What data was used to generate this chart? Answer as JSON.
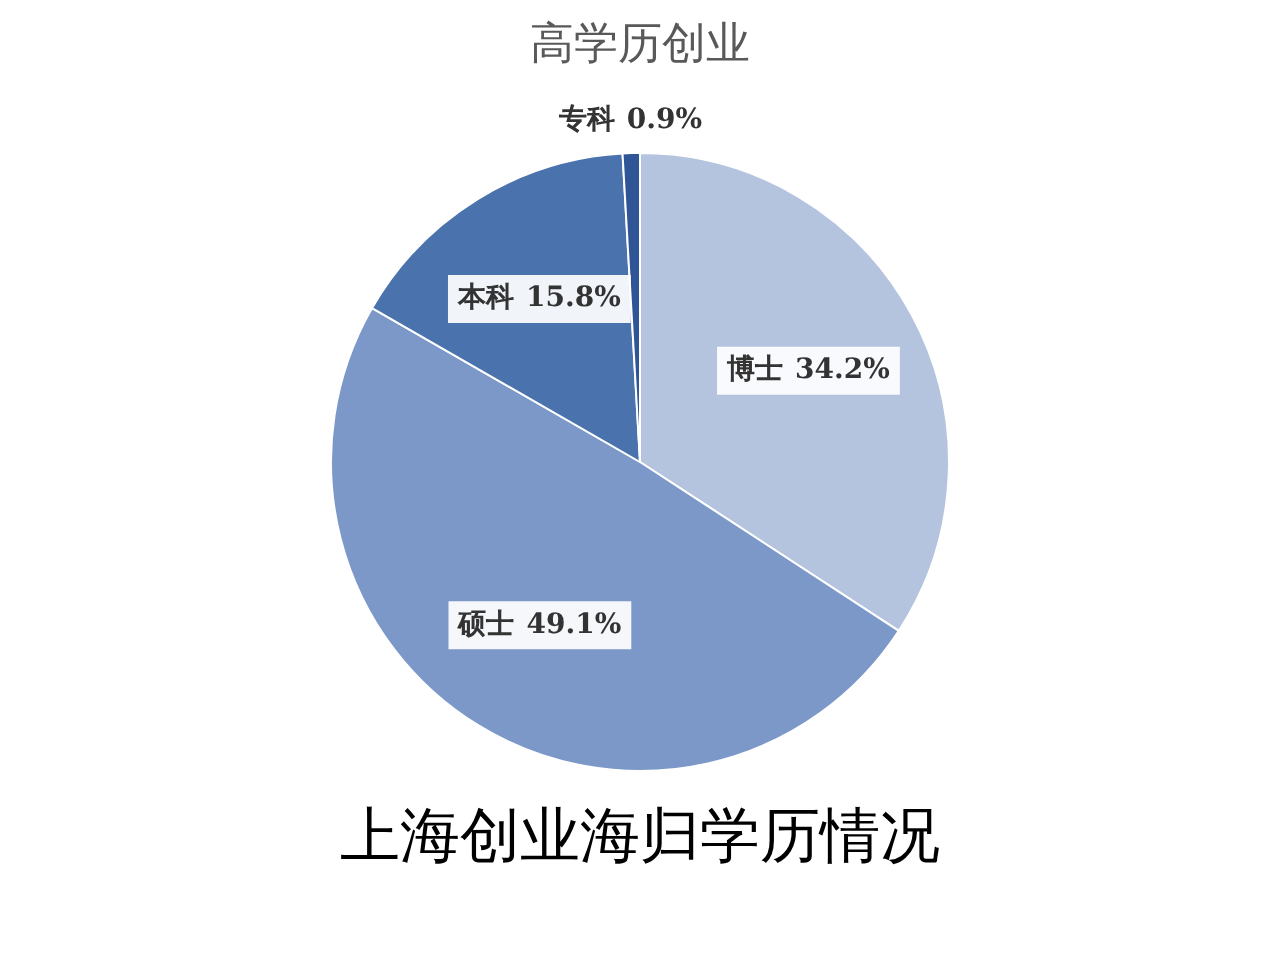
{
  "chart_data": {
    "type": "pie",
    "title": "高学历创业",
    "categories": [
      "博士",
      "硕士",
      "本科",
      "专科"
    ],
    "values": [
      34.2,
      49.1,
      15.8,
      0.9
    ],
    "colors": [
      "#b4c3de",
      "#7b98c9",
      "#4a72ac",
      "#2f5597"
    ],
    "value_labels": [
      "34.2%",
      "49.1%",
      "15.8%",
      "0.9%"
    ],
    "annotations": [
      "上海创业海归学历情况"
    ]
  }
}
